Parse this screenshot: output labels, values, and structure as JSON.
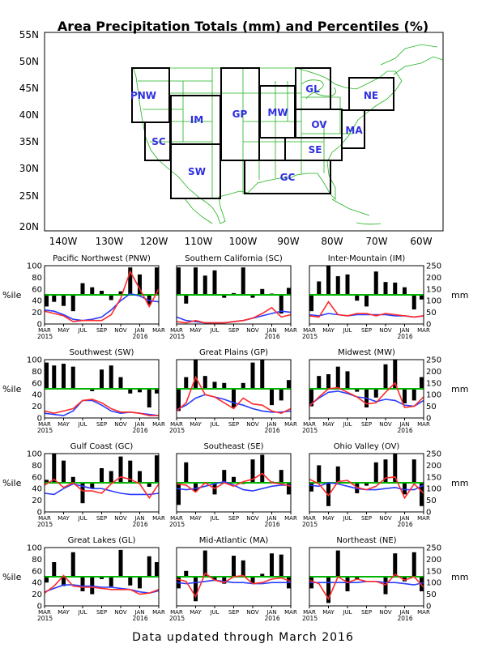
{
  "title": "Area Precipitation Totals (mm) and Percentiles (%)",
  "footer": "Data updated through March 2016",
  "colors": {
    "map_lines": "#1db31d",
    "region_labels": "#2f2fe0",
    "percentile_line": "#00b400",
    "red_series": "#ff2a2a",
    "blue_series": "#2a3cff",
    "bars": "#000000"
  },
  "map": {
    "lat_ticks": [
      "55N",
      "50N",
      "45N",
      "40N",
      "35N",
      "30N",
      "25N",
      "20N"
    ],
    "lon_ticks": [
      "140W",
      "130W",
      "120W",
      "110W",
      "100W",
      "90W",
      "80W",
      "70W",
      "60W"
    ],
    "region_labels": [
      "PNW",
      "SC",
      "IM",
      "SW",
      "GP",
      "MW",
      "GL",
      "OV",
      "SE",
      "GC",
      "MA",
      "NE"
    ]
  },
  "panel_axes": {
    "left_label": "%ile",
    "right_label": "mm",
    "left_ticks": [
      "100",
      "80",
      "60",
      "40",
      "20",
      "0"
    ],
    "right_ticks": [
      "250",
      "200",
      "150",
      "100",
      "50",
      "0"
    ],
    "month_ticks": [
      "MAR",
      "MAY",
      "JUL",
      "SEP",
      "NOV",
      "JAN",
      "MAR"
    ],
    "year_ticks": [
      "2015",
      "2016"
    ]
  },
  "chart_data": [
    {
      "type": "bar+line",
      "title": "Pacific Northwest (PNW)",
      "categories": [
        "MAR",
        "APR",
        "MAY",
        "JUN",
        "JUL",
        "AUG",
        "SEP",
        "OCT",
        "NOV",
        "DEC",
        "JAN",
        "FEB",
        "MAR"
      ],
      "bars_percentile": [
        30,
        38,
        31,
        22,
        70,
        63,
        57,
        41,
        56,
        97,
        85,
        33,
        97
      ],
      "red_mm": [
        55,
        45,
        35,
        10,
        15,
        15,
        15,
        40,
        110,
        225,
        150,
        75,
        150
      ],
      "blue_mm": [
        60,
        55,
        40,
        20,
        15,
        20,
        30,
        60,
        100,
        130,
        120,
        100,
        95
      ],
      "ylim_left": [
        0,
        100
      ],
      "ylim_right": [
        0,
        250
      ]
    },
    {
      "type": "bar+line",
      "title": "Southern California (SC)",
      "categories": [
        "MAR",
        "APR",
        "MAY",
        "JUN",
        "JUL",
        "AUG",
        "SEP",
        "OCT",
        "NOV",
        "DEC",
        "JAN",
        "FEB",
        "MAR"
      ],
      "bars_percentile": [
        97,
        35,
        97,
        83,
        92,
        45,
        53,
        97,
        45,
        60,
        52,
        18,
        62
      ],
      "red_mm": [
        10,
        5,
        15,
        5,
        5,
        5,
        10,
        15,
        25,
        45,
        70,
        30,
        40
      ],
      "blue_mm": [
        30,
        15,
        10,
        5,
        5,
        5,
        10,
        15,
        25,
        35,
        45,
        55,
        50
      ],
      "ylim_left": [
        0,
        100
      ],
      "ylim_right": [
        0,
        250
      ]
    },
    {
      "type": "bar+line",
      "title": "Inter-Mountain (IM)",
      "categories": [
        "MAR",
        "APR",
        "MAY",
        "JUN",
        "JUL",
        "AUG",
        "SEP",
        "OCT",
        "NOV",
        "DEC",
        "JAN",
        "FEB",
        "MAR"
      ],
      "bars_percentile": [
        22,
        73,
        100,
        82,
        85,
        40,
        30,
        90,
        72,
        71,
        63,
        25,
        42
      ],
      "red_mm": [
        35,
        30,
        95,
        40,
        35,
        45,
        45,
        35,
        45,
        40,
        35,
        30,
        35
      ],
      "blue_mm": [
        40,
        35,
        45,
        40,
        35,
        40,
        40,
        40,
        40,
        35,
        35,
        30,
        35
      ],
      "ylim_left": [
        0,
        100
      ],
      "ylim_right": [
        0,
        250
      ]
    },
    {
      "type": "bar+line",
      "title": "Southwest (SW)",
      "categories": [
        "MAR",
        "APR",
        "MAY",
        "JUN",
        "JUL",
        "AUG",
        "SEP",
        "OCT",
        "NOV",
        "DEC",
        "JAN",
        "FEB",
        "MAR"
      ],
      "bars_percentile": [
        95,
        90,
        93,
        88,
        50,
        46,
        83,
        90,
        70,
        42,
        44,
        18,
        42
      ],
      "red_mm": [
        30,
        20,
        30,
        40,
        75,
        80,
        65,
        40,
        25,
        25,
        20,
        10,
        10
      ],
      "blue_mm": [
        20,
        15,
        10,
        30,
        75,
        75,
        55,
        30,
        20,
        25,
        20,
        15,
        10
      ],
      "ylim_left": [
        0,
        100
      ],
      "ylim_right": [
        0,
        250
      ]
    },
    {
      "type": "bar+line",
      "title": "Great Plains (GP)",
      "categories": [
        "MAR",
        "APR",
        "MAY",
        "JUN",
        "JUL",
        "AUG",
        "SEP",
        "OCT",
        "NOV",
        "DEC",
        "JAN",
        "FEB",
        "MAR"
      ],
      "bars_percentile": [
        12,
        70,
        100,
        72,
        62,
        60,
        18,
        60,
        95,
        100,
        22,
        30,
        65
      ],
      "red_mm": [
        30,
        65,
        175,
        100,
        90,
        65,
        40,
        85,
        60,
        55,
        30,
        20,
        40
      ],
      "blue_mm": [
        35,
        55,
        85,
        100,
        90,
        80,
        65,
        55,
        40,
        30,
        25,
        25,
        30
      ],
      "ylim_left": [
        0,
        100
      ],
      "ylim_right": [
        0,
        250
      ]
    },
    {
      "type": "bar+line",
      "title": "Midwest (MW)",
      "categories": [
        "MAR",
        "APR",
        "MAY",
        "JUN",
        "JUL",
        "AUG",
        "SEP",
        "OCT",
        "NOV",
        "DEC",
        "JAN",
        "FEB",
        "MAR"
      ],
      "bars_percentile": [
        20,
        72,
        75,
        88,
        80,
        45,
        18,
        35,
        92,
        100,
        25,
        30,
        70
      ],
      "red_mm": [
        50,
        90,
        125,
        130,
        110,
        90,
        60,
        65,
        110,
        150,
        45,
        50,
        90
      ],
      "blue_mm": [
        55,
        85,
        110,
        115,
        105,
        90,
        85,
        70,
        80,
        75,
        55,
        50,
        75
      ],
      "ylim_left": [
        0,
        100
      ],
      "ylim_right": [
        0,
        250
      ]
    },
    {
      "type": "bar+line",
      "title": "Gulf Coast (GC)",
      "categories": [
        "MAR",
        "APR",
        "MAY",
        "JUN",
        "JUL",
        "AUG",
        "SEP",
        "OCT",
        "NOV",
        "DEC",
        "JAN",
        "FEB",
        "MAR"
      ],
      "bars_percentile": [
        55,
        100,
        88,
        60,
        15,
        40,
        75,
        70,
        95,
        88,
        70,
        43,
        97
      ],
      "red_mm": [
        115,
        140,
        105,
        125,
        90,
        90,
        80,
        120,
        150,
        140,
        120,
        60,
        120
      ],
      "blue_mm": [
        80,
        75,
        100,
        120,
        110,
        100,
        100,
        90,
        80,
        75,
        75,
        75,
        80
      ],
      "ylim_left": [
        0,
        100
      ],
      "ylim_right": [
        0,
        250
      ]
    },
    {
      "type": "bar+line",
      "title": "Southeast (SE)",
      "categories": [
        "MAR",
        "APR",
        "MAY",
        "JUN",
        "JUL",
        "AUG",
        "SEP",
        "OCT",
        "NOV",
        "DEC",
        "JAN",
        "FEB",
        "MAR"
      ],
      "bars_percentile": [
        12,
        85,
        35,
        50,
        30,
        72,
        60,
        48,
        90,
        98,
        52,
        72,
        30
      ],
      "red_mm": [
        120,
        115,
        85,
        125,
        100,
        125,
        110,
        130,
        140,
        165,
        125,
        120,
        110
      ],
      "blue_mm": [
        100,
        95,
        100,
        110,
        120,
        130,
        115,
        95,
        90,
        100,
        110,
        115,
        115
      ],
      "ylim_left": [
        0,
        100
      ],
      "ylim_right": [
        0,
        250
      ]
    },
    {
      "type": "bar+line",
      "title": "Ohio Valley (OV)",
      "categories": [
        "MAR",
        "APR",
        "MAY",
        "JUN",
        "JUL",
        "AUG",
        "SEP",
        "OCT",
        "NOV",
        "DEC",
        "JAN",
        "FEB",
        "MAR"
      ],
      "bars_percentile": [
        35,
        80,
        10,
        78,
        50,
        32,
        45,
        85,
        90,
        100,
        30,
        90,
        10
      ],
      "red_mm": [
        140,
        120,
        70,
        130,
        135,
        105,
        95,
        110,
        145,
        150,
        60,
        120,
        80
      ],
      "blue_mm": [
        115,
        110,
        125,
        120,
        110,
        100,
        95,
        95,
        100,
        105,
        95,
        95,
        115
      ],
      "ylim_left": [
        0,
        100
      ],
      "ylim_right": [
        0,
        250
      ]
    },
    {
      "type": "bar+line",
      "title": "Great Lakes (GL)",
      "categories": [
        "MAR",
        "APR",
        "MAY",
        "JUN",
        "JUL",
        "AUG",
        "SEP",
        "OCT",
        "NOV",
        "DEC",
        "JAN",
        "FEB",
        "MAR"
      ],
      "bars_percentile": [
        40,
        75,
        34,
        92,
        25,
        20,
        46,
        33,
        96,
        35,
        30,
        85,
        75
      ],
      "red_mm": [
        55,
        85,
        130,
        85,
        80,
        80,
        75,
        70,
        70,
        70,
        50,
        55,
        70
      ],
      "blue_mm": [
        60,
        75,
        90,
        90,
        85,
        85,
        80,
        80,
        75,
        70,
        60,
        55,
        65
      ],
      "ylim_left": [
        0,
        100
      ],
      "ylim_right": [
        0,
        250
      ]
    },
    {
      "type": "bar+line",
      "title": "Mid-Atlantic (MA)",
      "categories": [
        "MAR",
        "APR",
        "MAY",
        "JUN",
        "JUL",
        "AUG",
        "SEP",
        "OCT",
        "NOV",
        "DEC",
        "JAN",
        "FEB",
        "MAR"
      ],
      "bars_percentile": [
        30,
        60,
        8,
        95,
        44,
        38,
        86,
        78,
        38,
        55,
        90,
        88,
        30
      ],
      "red_mm": [
        115,
        105,
        40,
        140,
        110,
        100,
        125,
        130,
        95,
        100,
        115,
        120,
        105
      ],
      "blue_mm": [
        100,
        95,
        100,
        105,
        110,
        105,
        100,
        100,
        95,
        95,
        100,
        100,
        100
      ],
      "ylim_left": [
        0,
        100
      ],
      "ylim_right": [
        0,
        250
      ]
    },
    {
      "type": "bar+line",
      "title": "Northeast (NE)",
      "categories": [
        "MAR",
        "APR",
        "MAY",
        "JUN",
        "JUL",
        "AUG",
        "SEP",
        "OCT",
        "NOV",
        "DEC",
        "JAN",
        "FEB",
        "MAR"
      ],
      "bars_percentile": [
        30,
        50,
        5,
        95,
        25,
        45,
        50,
        50,
        20,
        90,
        42,
        92,
        25
      ],
      "red_mm": [
        110,
        95,
        30,
        125,
        100,
        115,
        105,
        105,
        90,
        135,
        110,
        125,
        80
      ],
      "blue_mm": [
        100,
        100,
        100,
        100,
        100,
        100,
        105,
        105,
        100,
        100,
        95,
        90,
        100
      ],
      "ylim_left": [
        0,
        100
      ],
      "ylim_right": [
        0,
        250
      ]
    }
  ]
}
